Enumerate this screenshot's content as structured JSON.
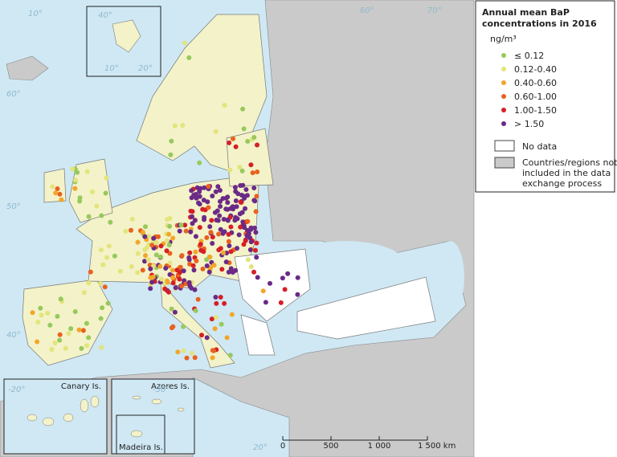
{
  "legend": {
    "title_lines": [
      "Annual mean BaP",
      "concentrations in 2016"
    ],
    "unit": "ng/m³",
    "classes": [
      {
        "label": "≤ 0.12",
        "color": "#97c95c"
      },
      {
        "label": "0.12-0.40",
        "color": "#e3e47a"
      },
      {
        "label": "0.40-0.60",
        "color": "#f2a62a"
      },
      {
        "label": "0.60-1.00",
        "color": "#e8621f"
      },
      {
        "label": "1.00-1.50",
        "color": "#d51f27"
      },
      {
        "label": "> 1.50",
        "color": "#6b2a86"
      }
    ],
    "no_data": "No data",
    "not_included_lines": [
      "Countries/regions not",
      "included in the data",
      "exchange process"
    ]
  },
  "insets": {
    "canary": "Canary Is.",
    "azores": "Azores Is.",
    "madeira": "Madeira Is."
  },
  "scale_bar": [
    "0",
    "500",
    "1 000",
    "1 500 km"
  ],
  "graticule_labels": [
    "10°",
    "40°",
    "60°",
    "70°",
    "60°",
    "50°",
    "40°",
    "-20°",
    "-30°",
    "20°",
    "10°",
    "20°"
  ]
}
